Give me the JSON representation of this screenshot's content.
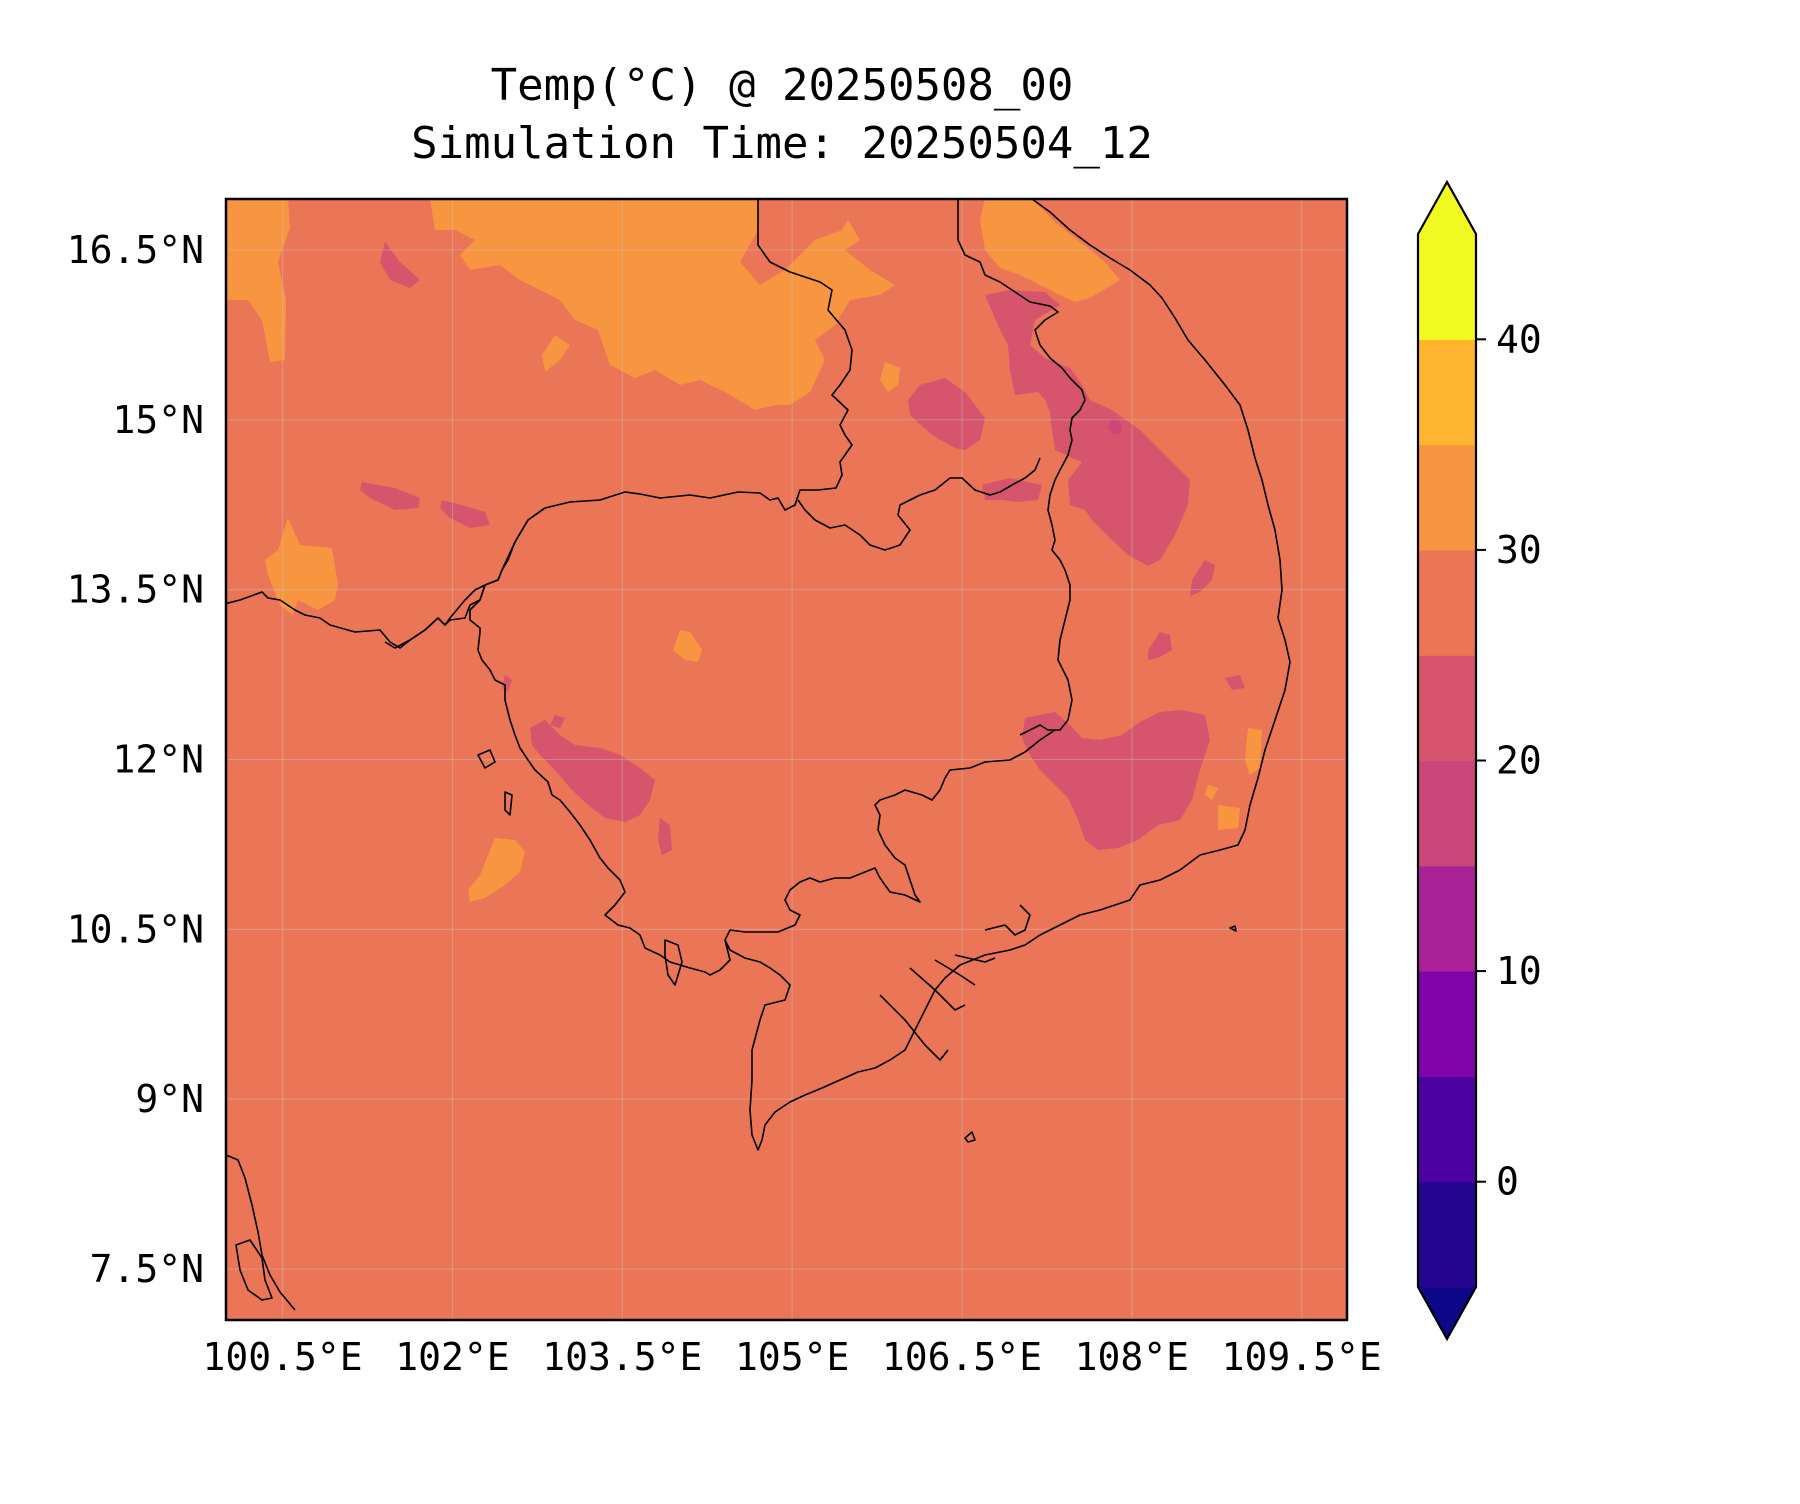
{
  "title_line1": "Temp(°C) @ 20250508_00",
  "title_line2": "Simulation Time: 20250504_12",
  "map": {
    "extent": {
      "lon": [
        100.0,
        109.9
      ],
      "lat": [
        7.05,
        16.95
      ]
    },
    "lon_ticks": [
      {
        "value": 100.5,
        "label": "100.5°E"
      },
      {
        "value": 102.0,
        "label": "102°E"
      },
      {
        "value": 103.5,
        "label": "103.5°E"
      },
      {
        "value": 105.0,
        "label": "105°E"
      },
      {
        "value": 106.5,
        "label": "106.5°E"
      },
      {
        "value": 108.0,
        "label": "108°E"
      },
      {
        "value": 109.5,
        "label": "109.5°E"
      }
    ],
    "lat_ticks": [
      {
        "value": 16.5,
        "label": "16.5°N"
      },
      {
        "value": 15.0,
        "label": "15°N"
      },
      {
        "value": 13.5,
        "label": "13.5°N"
      },
      {
        "value": 12.0,
        "label": "12°N"
      },
      {
        "value": 10.5,
        "label": "10.5°N"
      },
      {
        "value": 9.0,
        "label": "9°N"
      },
      {
        "value": 7.5,
        "label": "7.5°N"
      }
    ],
    "gridlines": true,
    "background_color": "#eb7557"
  },
  "colorbar": {
    "levels": [
      -5,
      0,
      5,
      10,
      15,
      20,
      25,
      30,
      35,
      40,
      45
    ],
    "colors": [
      "#220690",
      "#4c02a1",
      "#7e03a8",
      "#a82296",
      "#cb4679",
      "#d6556d",
      "#eb7557",
      "#f89540",
      "#fdb42f",
      "#f0f921"
    ],
    "under_color": "#0d0887",
    "over_color": "#f0f921",
    "extend": "both",
    "ticks": [
      {
        "value": 0,
        "label": "0"
      },
      {
        "value": 10,
        "label": "10"
      },
      {
        "value": 20,
        "label": "20"
      },
      {
        "value": 30,
        "label": "30"
      },
      {
        "value": 40,
        "label": "40"
      }
    ]
  }
}
